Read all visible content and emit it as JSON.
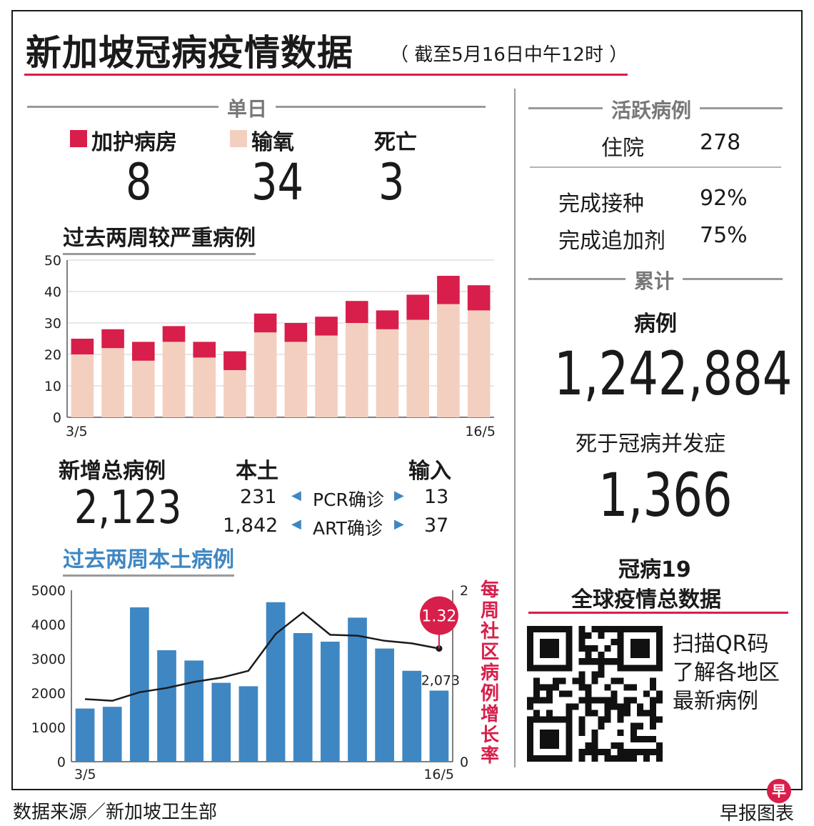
{
  "title": "新加坡冠病疫情数据",
  "subtitle": "（ 截至5月16日中午12时 ）",
  "daily": {
    "section_label": "单日",
    "items": [
      {
        "label": "加护病房",
        "value": "8",
        "color": "#d81e4a"
      },
      {
        "label": "输氧",
        "value": "34",
        "color": "#f3cfc0"
      },
      {
        "label": "死亡",
        "value": "3"
      }
    ]
  },
  "severe_chart_title": "过去两周较严重病例",
  "new_cases": {
    "label": "新增总病例",
    "value": "2,123",
    "local_label": "本土",
    "imported_label": "输入",
    "pcr_label": "PCR确诊",
    "art_label": "ART确诊",
    "pcr_local": "231",
    "pcr_imported": "13",
    "art_local": "1,842",
    "art_imported": "37"
  },
  "local_chart_title": "过去两周本土病例",
  "active": {
    "section_label": "活跃病例",
    "hospital_label": "住院",
    "hospital_value": "278",
    "vacc_label": "完成接种",
    "vacc_value": "92%",
    "booster_label": "完成追加剂",
    "booster_value": "75%"
  },
  "cumulative": {
    "section_label": "累计",
    "cases_label": "病例",
    "cases_value": "1,242,884",
    "deaths_label": "死于冠病并发症",
    "deaths_value": "1,366"
  },
  "global": {
    "title_line1": "冠病19",
    "title_line2": "全球疫情总数据",
    "qr_line1": "扫描QR码",
    "qr_line2": "了解各地区",
    "qr_line3": "最新病例"
  },
  "footer": {
    "source": "数据来源／新加坡卫生部",
    "credit": "早报图表",
    "logo_char": "早"
  },
  "chart_data": [
    {
      "type": "bar",
      "title": "过去两周较严重病例",
      "x_start_label": "3/5",
      "x_end_label": "16/5",
      "ylim": [
        0,
        50
      ],
      "yticks": [
        0,
        10,
        20,
        30,
        40,
        50
      ],
      "grid": true,
      "stacked": true,
      "series": [
        {
          "name": "输氧",
          "color": "#f3cfc0",
          "values": [
            20,
            22,
            18,
            24,
            19,
            15,
            27,
            24,
            26,
            30,
            28,
            31,
            36,
            34
          ]
        },
        {
          "name": "加护病房",
          "color": "#d81e4a",
          "values": [
            5,
            6,
            6,
            5,
            5,
            6,
            6,
            6,
            6,
            7,
            6,
            8,
            9,
            8
          ]
        }
      ]
    },
    {
      "type": "bar",
      "title": "过去两周本土病例",
      "x_start_label": "3/5",
      "x_end_label": "16/5",
      "ylim": [
        0,
        5000
      ],
      "yticks": [
        0,
        1000,
        2000,
        3000,
        4000,
        5000
      ],
      "y2lim": [
        0,
        2
      ],
      "y2ticks": [
        0,
        2
      ],
      "y2label": "每周社区病例增长率",
      "bar_color": "#3f87c3",
      "line_color": "#1a1a1a",
      "bar_values": [
        1550,
        1600,
        4500,
        3250,
        2950,
        2300,
        2200,
        4650,
        3750,
        3500,
        4200,
        3300,
        2650,
        2073
      ],
      "line_values": [
        0.73,
        0.71,
        0.81,
        0.86,
        0.93,
        0.98,
        1.06,
        1.49,
        1.74,
        1.48,
        1.47,
        1.41,
        1.38,
        1.32
      ],
      "last_bar_label": "2,073",
      "last_line_label": "1.32"
    }
  ]
}
